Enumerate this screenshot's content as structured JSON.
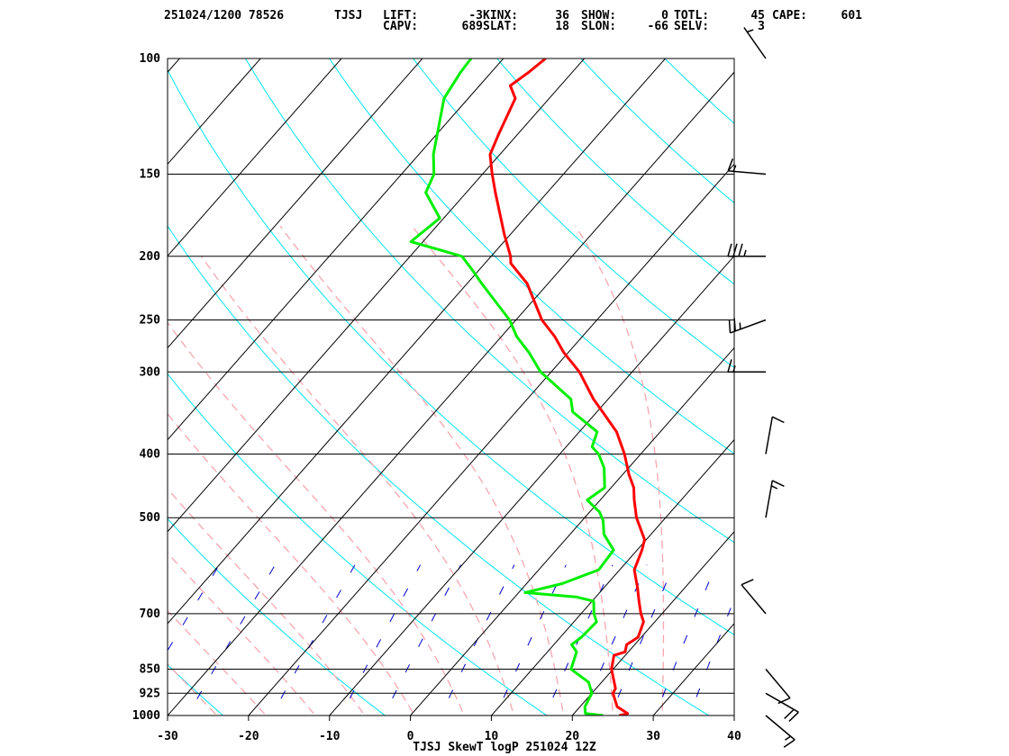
{
  "header": {
    "datetime_station": "251024/1200 78526",
    "station_id": "TJSJ",
    "indices": [
      {
        "label": "LIFT:",
        "value": "-3"
      },
      {
        "label": "KINX:",
        "value": "36"
      },
      {
        "label": "SHOW:",
        "value": "0"
      },
      {
        "label": "TOTL:",
        "value": "45"
      },
      {
        "label": "CAPE:",
        "value": "601"
      },
      {
        "label": "CAPV:",
        "value": "689"
      },
      {
        "label": "SLAT:",
        "value": "18"
      },
      {
        "label": "SLON:",
        "value": "-66"
      },
      {
        "label": "SELV:",
        "value": "3"
      }
    ]
  },
  "chart_data": {
    "type": "line",
    "title": "TJSJ SkewT logP 251024 12Z",
    "xlabel": "",
    "ylabel": "",
    "x_ticks": [
      -30,
      -20,
      -10,
      0,
      10,
      20,
      30,
      40
    ],
    "y_ticks": [
      100,
      150,
      200,
      250,
      300,
      400,
      500,
      700,
      850,
      925,
      1000
    ],
    "xlim": [
      -30,
      40
    ],
    "ylim": [
      1000,
      100
    ],
    "y_scale": "log",
    "skewed": true,
    "colors": {
      "temperature": "#ff0000",
      "dewpoint": "#00ee00",
      "dry_adiabat": "#00e5ee",
      "moist_adiabat": "#f5a6b0",
      "mixing_ratio": "#0000cc",
      "isotherm": "#000000",
      "wind": "#000000"
    },
    "series": [
      {
        "key": "temperature",
        "values": [
          [
            1000,
            25.8
          ],
          [
            993,
            26.6
          ],
          [
            970,
            24.6
          ],
          [
            925,
            22.6
          ],
          [
            910,
            22.4
          ],
          [
            850,
            19.8
          ],
          [
            810,
            18.6
          ],
          [
            800,
            19.6
          ],
          [
            780,
            19.0
          ],
          [
            760,
            19.6
          ],
          [
            720,
            18.6
          ],
          [
            700,
            17.4
          ],
          [
            670,
            15.8
          ],
          [
            640,
            14.2
          ],
          [
            600,
            11.8
          ],
          [
            560,
            10.6
          ],
          [
            540,
            9.8
          ],
          [
            500,
            6.4
          ],
          [
            470,
            4.2
          ],
          [
            450,
            2.8
          ],
          [
            430,
            0.8
          ],
          [
            400,
            -2.0
          ],
          [
            370,
            -5.4
          ],
          [
            345,
            -9.3
          ],
          [
            330,
            -11.8
          ],
          [
            300,
            -16.5
          ],
          [
            280,
            -20.6
          ],
          [
            265,
            -23.4
          ],
          [
            250,
            -26.8
          ],
          [
            220,
            -32.6
          ],
          [
            205,
            -36.8
          ],
          [
            200,
            -37.6
          ],
          [
            185,
            -40.8
          ],
          [
            160,
            -46.4
          ],
          [
            150,
            -48.8
          ],
          [
            140,
            -51.2
          ],
          [
            130,
            -52.4
          ],
          [
            115,
            -54.2
          ],
          [
            110,
            -56.2
          ],
          [
            105,
            -55.4
          ],
          [
            100,
            -54.8
          ]
        ]
      },
      {
        "key": "dewpoint",
        "values": [
          [
            1000,
            23.8
          ],
          [
            993,
            21.4
          ],
          [
            970,
            20.6
          ],
          [
            925,
            20.0
          ],
          [
            890,
            18.4
          ],
          [
            850,
            14.8
          ],
          [
            800,
            13.6
          ],
          [
            780,
            12.2
          ],
          [
            760,
            12.6
          ],
          [
            720,
            12.8
          ],
          [
            700,
            11.6
          ],
          [
            670,
            10.2
          ],
          [
            660,
            7.6
          ],
          [
            650,
            0.8
          ],
          [
            630,
            4.4
          ],
          [
            600,
            7.4
          ],
          [
            560,
            7.1
          ],
          [
            530,
            4.2
          ],
          [
            505,
            2.6
          ],
          [
            490,
            1.2
          ],
          [
            470,
            -1.6
          ],
          [
            450,
            -0.8
          ],
          [
            420,
            -3.0
          ],
          [
            400,
            -5.2
          ],
          [
            390,
            -6.8
          ],
          [
            370,
            -7.8
          ],
          [
            345,
            -13.0
          ],
          [
            330,
            -14.6
          ],
          [
            300,
            -21.3
          ],
          [
            280,
            -24.9
          ],
          [
            265,
            -28.1
          ],
          [
            250,
            -30.8
          ],
          [
            220,
            -38.2
          ],
          [
            210,
            -40.8
          ],
          [
            200,
            -43.6
          ],
          [
            190,
            -51.5
          ],
          [
            175,
            -50.5
          ],
          [
            160,
            -55.0
          ],
          [
            150,
            -56.0
          ],
          [
            140,
            -58.2
          ],
          [
            115,
            -63.0
          ],
          [
            105,
            -63.8
          ],
          [
            100,
            -64.0
          ]
        ]
      }
    ],
    "winds": [
      {
        "p": 100,
        "dir": 325,
        "spd": 5
      },
      {
        "p": 150,
        "dir": 275,
        "spd": 15
      },
      {
        "p": 200,
        "dir": 270,
        "spd": 35
      },
      {
        "p": 250,
        "dir": 250,
        "spd": 25
      },
      {
        "p": 300,
        "dir": 270,
        "spd": 15
      },
      {
        "p": 400,
        "dir": 10,
        "spd": 10
      },
      {
        "p": 500,
        "dir": 10,
        "spd": 15
      },
      {
        "p": 700,
        "dir": 320,
        "spd": 10
      },
      {
        "p": 850,
        "dir": 140,
        "spd": 10
      },
      {
        "p": 925,
        "dir": 120,
        "spd": 20
      },
      {
        "p": 1000,
        "dir": 130,
        "spd": 15
      }
    ]
  }
}
